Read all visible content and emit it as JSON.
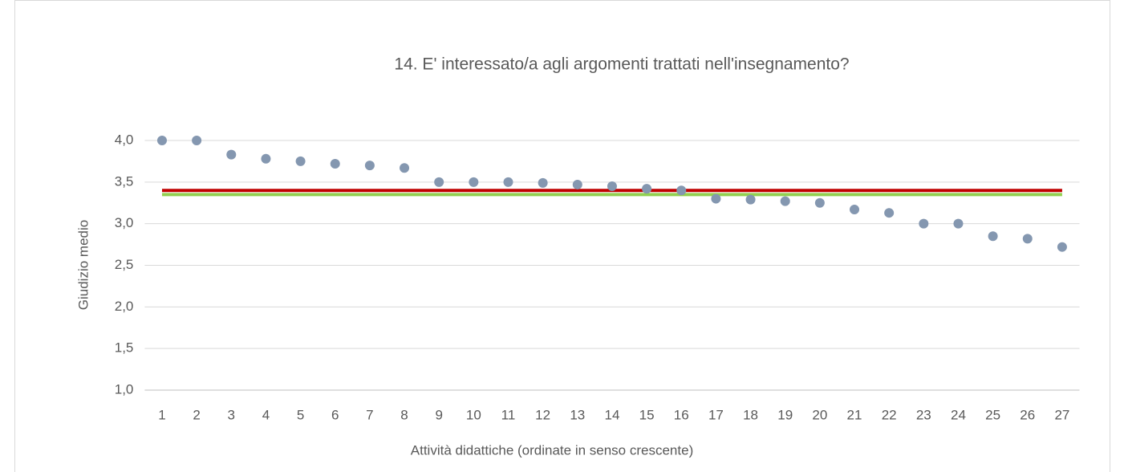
{
  "chart_data": {
    "type": "scatter",
    "title": "14. E' interessato/a agli argomenti trattati nell'insegnamento?",
    "xlabel": "Attività didattiche (ordinate in senso crescente)",
    "ylabel": "Giudizio medio",
    "categories": [
      "1",
      "2",
      "3",
      "4",
      "5",
      "6",
      "7",
      "8",
      "9",
      "10",
      "11",
      "12",
      "13",
      "14",
      "15",
      "16",
      "17",
      "18",
      "19",
      "20",
      "21",
      "22",
      "23",
      "24",
      "25",
      "26",
      "27"
    ],
    "values": [
      4.0,
      4.0,
      3.83,
      3.78,
      3.75,
      3.72,
      3.7,
      3.67,
      3.5,
      3.5,
      3.5,
      3.49,
      3.47,
      3.45,
      3.42,
      3.4,
      3.3,
      3.29,
      3.27,
      3.25,
      3.17,
      3.13,
      3.0,
      3.0,
      2.85,
      2.82,
      2.72
    ],
    "color": "#8497b0",
    "reference_lines": [
      {
        "value": 3.4,
        "color": "#c00000"
      },
      {
        "value": 3.35,
        "color": "#92d050"
      }
    ],
    "ylim": [
      1,
      4
    ],
    "yticks": [
      {
        "value": 1,
        "label": "1,0"
      },
      {
        "value": 1.5,
        "label": "1,5"
      },
      {
        "value": 2,
        "label": "2,0"
      },
      {
        "value": 2.5,
        "label": "2,5"
      },
      {
        "value": 3,
        "label": "3,0"
      },
      {
        "value": 3.5,
        "label": "3,5"
      },
      {
        "value": 4,
        "label": "4,0"
      }
    ],
    "grid": true
  }
}
